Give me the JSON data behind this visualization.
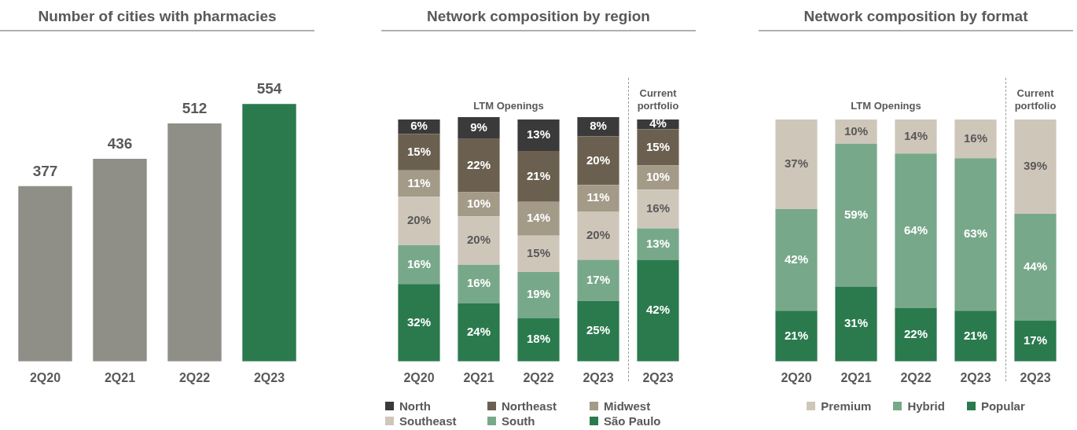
{
  "chart_data": [
    {
      "type": "bar",
      "title": "Number of cities with pharmacies",
      "categories": [
        "2Q20",
        "2Q21",
        "2Q22",
        "2Q23"
      ],
      "values": [
        377,
        436,
        512,
        554
      ],
      "colors": [
        "#908f87",
        "#908f87",
        "#908f87",
        "#2a7a4e"
      ],
      "data_labels": true,
      "grid": false,
      "legend": false,
      "tick_labels": "x"
    },
    {
      "type": "bar",
      "title": "Network composition by region",
      "stacked": true,
      "categories": [
        "2Q20",
        "2Q21",
        "2Q22",
        "2Q23",
        "2Q23"
      ],
      "annotations": [
        "LTM Openings",
        "Current portfolio"
      ],
      "grid": false,
      "legend": "bottom",
      "tick_labels": "x",
      "series": [
        {
          "name": "São Paulo",
          "color": "#2a7a4e",
          "values": [
            32,
            24,
            18,
            25,
            42
          ],
          "value_labels": [
            "32%",
            "24%",
            "18%",
            "25%",
            "42%"
          ]
        },
        {
          "name": "South",
          "color": "#78a88a",
          "values": [
            16,
            16,
            19,
            17,
            13
          ],
          "value_labels": [
            "16%",
            "16%",
            "19%",
            "17%",
            "13%"
          ]
        },
        {
          "name": "Southeast",
          "color": "#cfc6ba",
          "values": [
            20,
            20,
            15,
            20,
            16
          ],
          "value_labels": [
            "20%",
            "20%",
            "15%",
            "20%",
            "16%"
          ]
        },
        {
          "name": "Midwest",
          "color": "#a39a88",
          "values": [
            11,
            10,
            14,
            11,
            10
          ],
          "value_labels": [
            "11%",
            "10%",
            "14%",
            "11%",
            "10%"
          ]
        },
        {
          "name": "Northeast",
          "color": "#6b604f",
          "values": [
            15,
            22,
            21,
            20,
            15
          ],
          "value_labels": [
            "15%",
            "22%",
            "21%",
            "20%",
            "15%"
          ]
        },
        {
          "name": "North",
          "color": "#3a3a3a",
          "values": [
            6,
            9,
            13,
            8,
            4
          ],
          "value_labels": [
            "6%",
            "9%",
            "13%",
            "8%",
            "4%"
          ]
        }
      ]
    },
    {
      "type": "bar",
      "title": "Network composition by format",
      "stacked": true,
      "categories": [
        "2Q20",
        "2Q21",
        "2Q22",
        "2Q23",
        "2Q23"
      ],
      "annotations": [
        "LTM Openings",
        "Current portfolio"
      ],
      "grid": false,
      "legend": "bottom",
      "tick_labels": "x",
      "series": [
        {
          "name": "Popular",
          "color": "#2a7a4e",
          "values": [
            21,
            31,
            22,
            21,
            17
          ],
          "value_labels": [
            "21%",
            "31%",
            "22%",
            "21%",
            "17%"
          ]
        },
        {
          "name": "Hybrid",
          "color": "#78a88a",
          "values": [
            42,
            59,
            64,
            63,
            44
          ],
          "value_labels": [
            "42%",
            "59%",
            "64%",
            "63%",
            "44%"
          ]
        },
        {
          "name": "Premium",
          "color": "#cfc6ba",
          "values": [
            37,
            10,
            14,
            16,
            39
          ],
          "value_labels": [
            "37%",
            "10%",
            "14%",
            "16%",
            "39%"
          ]
        }
      ]
    }
  ]
}
